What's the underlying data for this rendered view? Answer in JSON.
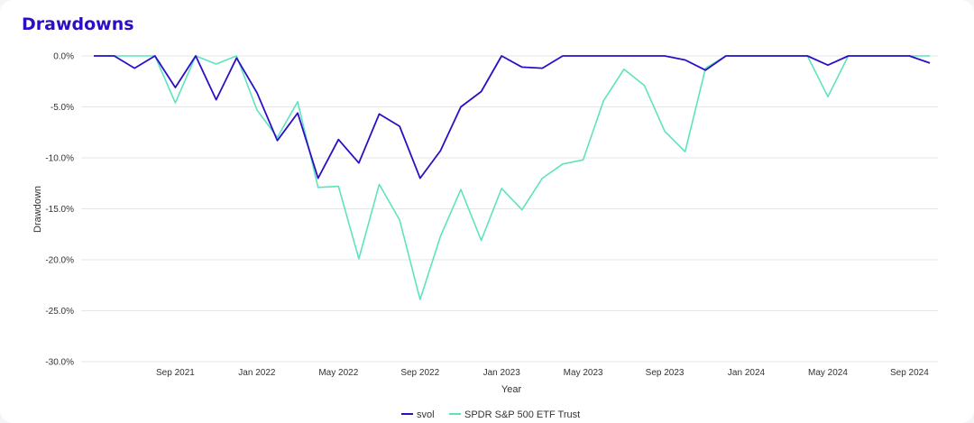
{
  "card": {
    "title": "Drawdowns"
  },
  "chart_data": {
    "type": "line",
    "title": "Drawdowns",
    "xlabel": "Year",
    "ylabel": "Drawdown",
    "ylim": [
      -30,
      0
    ],
    "yticks": [
      0,
      -5,
      -10,
      -15,
      -20,
      -25,
      -30
    ],
    "ytick_labels": [
      "0.0%",
      "-5.0%",
      "-10.0%",
      "-15.0%",
      "-20.0%",
      "-25.0%",
      "-30.0%"
    ],
    "xticks": [
      {
        "date": "2021-09",
        "label": "Sep 2021"
      },
      {
        "date": "2022-01",
        "label": "Jan 2022"
      },
      {
        "date": "2022-05",
        "label": "May 2022"
      },
      {
        "date": "2022-09",
        "label": "Sep 2022"
      },
      {
        "date": "2023-01",
        "label": "Jan 2023"
      },
      {
        "date": "2023-05",
        "label": "May 2023"
      },
      {
        "date": "2023-09",
        "label": "Sep 2023"
      },
      {
        "date": "2024-01",
        "label": "Jan 2024"
      },
      {
        "date": "2024-05",
        "label": "May 2024"
      },
      {
        "date": "2024-09",
        "label": "Sep 2024"
      }
    ],
    "x": [
      "2021-05",
      "2021-06",
      "2021-07",
      "2021-08",
      "2021-09",
      "2021-10",
      "2021-11",
      "2021-12",
      "2022-01",
      "2022-02",
      "2022-03",
      "2022-04",
      "2022-05",
      "2022-06",
      "2022-07",
      "2022-08",
      "2022-09",
      "2022-10",
      "2022-11",
      "2022-12",
      "2023-01",
      "2023-02",
      "2023-03",
      "2023-04",
      "2023-05",
      "2023-06",
      "2023-07",
      "2023-08",
      "2023-09",
      "2023-10",
      "2023-11",
      "2023-12",
      "2024-01",
      "2024-02",
      "2024-03",
      "2024-04",
      "2024-05",
      "2024-06",
      "2024-07",
      "2024-08",
      "2024-09",
      "2024-10"
    ],
    "grid": true,
    "legend_position": "bottom",
    "series": [
      {
        "name": "svol",
        "color": "#2b0fc4",
        "values": [
          0,
          0,
          -1.2,
          0,
          -3.1,
          0,
          -4.3,
          -0.2,
          -3.6,
          -8.3,
          -5.6,
          -12,
          -8.2,
          -10.5,
          -5.7,
          -6.9,
          -12,
          -9.3,
          -5,
          -3.5,
          0,
          -1.1,
          -1.2,
          0,
          0,
          0,
          0,
          0,
          0,
          -0.4,
          -1.4,
          0,
          0,
          0,
          0,
          0,
          -0.9,
          0,
          0,
          0,
          0,
          -0.7
        ]
      },
      {
        "name": "SPDR S&P 500 ETF Trust",
        "color": "#5ee3bf",
        "values": [
          0,
          0,
          0,
          0,
          -4.6,
          0,
          -0.8,
          0,
          -5.3,
          -8,
          -4.5,
          -12.9,
          -12.8,
          -19.9,
          -12.6,
          -16.1,
          -23.9,
          -17.7,
          -13.1,
          -18.1,
          -13,
          -15.1,
          -12,
          -10.6,
          -10.2,
          -4.4,
          -1.3,
          -2.9,
          -7.4,
          -9.4,
          -1.2,
          0,
          0,
          0,
          0,
          0,
          -4,
          0,
          0,
          0,
          0,
          0
        ]
      }
    ]
  }
}
